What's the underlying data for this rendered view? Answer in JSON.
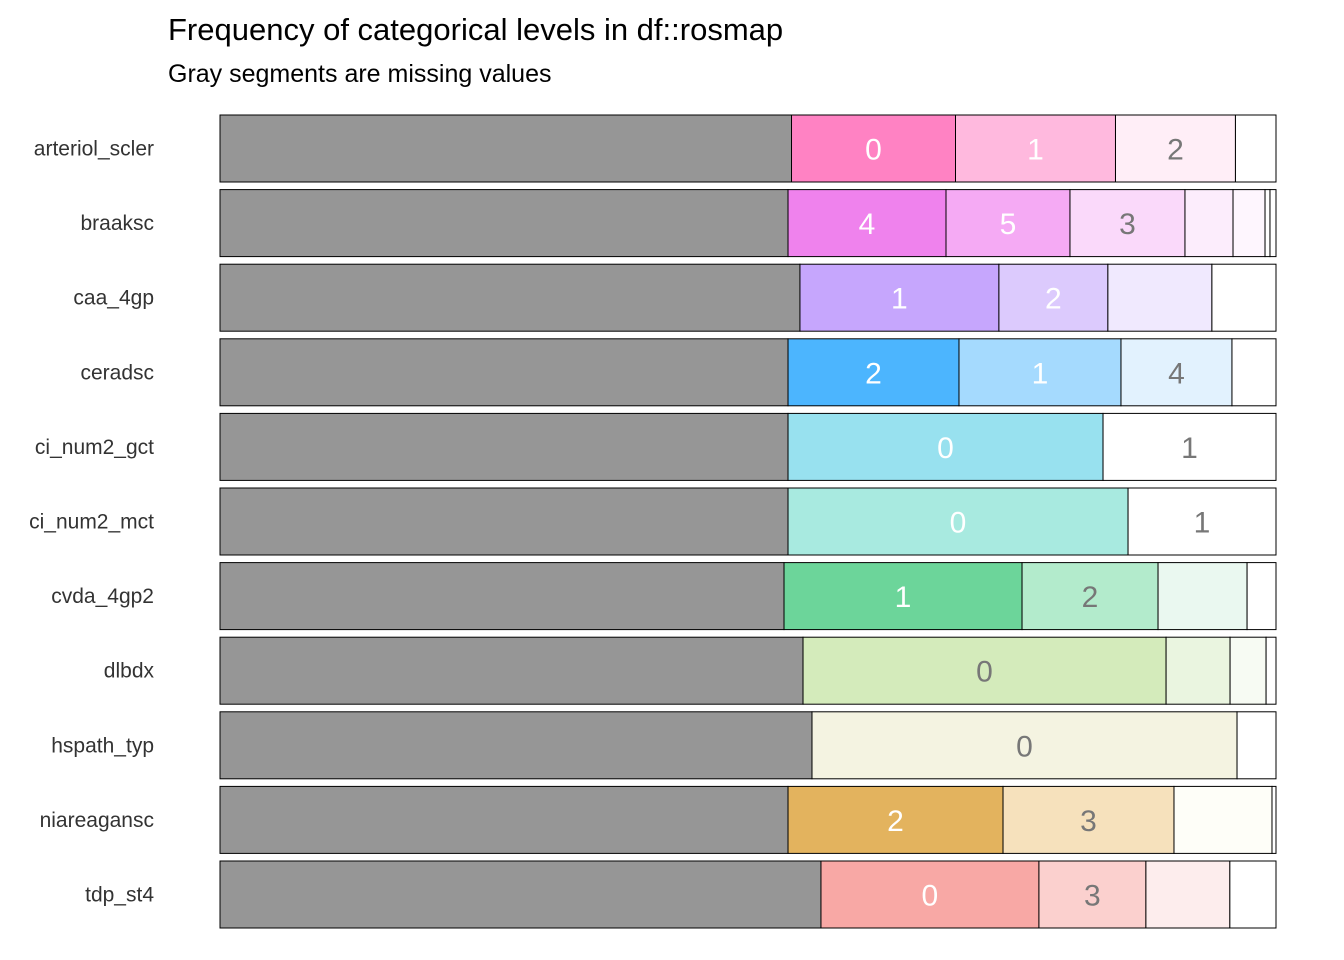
{
  "chart_data": {
    "type": "bar",
    "orientation": "horizontal",
    "stacked": true,
    "normalized": true,
    "title": "Frequency of categorical levels in df::rosmap",
    "subtitle": "Gray segments are missing values",
    "missing_color": "#969696",
    "label_color_dark": "#ffffff",
    "label_color_light": "#777777",
    "rows": [
      {
        "variable": "arteriol_scler",
        "missing": 0.5412,
        "segments": [
          {
            "label": "0",
            "proportion": 0.1553,
            "color": "#ff82c3",
            "dark_text": true
          },
          {
            "label": "1",
            "proportion": 0.1515,
            "color": "#ffb9de",
            "dark_text": true
          },
          {
            "label": "2",
            "proportion": 0.1136,
            "color": "#ffeef7",
            "dark_text": false
          },
          {
            "label": "",
            "proportion": 0.0384,
            "color": "#ffffff",
            "dark_text": false
          }
        ]
      },
      {
        "variable": "braaksc",
        "missing": 0.5379,
        "segments": [
          {
            "label": "4",
            "proportion": 0.1496,
            "color": "#ef82ed",
            "dark_text": true
          },
          {
            "label": "5",
            "proportion": 0.1174,
            "color": "#f5aaf4",
            "dark_text": true
          },
          {
            "label": "3",
            "proportion": 0.1089,
            "color": "#fad9fa",
            "dark_text": false
          },
          {
            "label": "",
            "proportion": 0.0455,
            "color": "#fcedfc",
            "dark_text": false
          },
          {
            "label": "",
            "proportion": 0.0303,
            "color": "#fef6fe",
            "dark_text": false
          },
          {
            "label": "",
            "proportion": 0.0047,
            "color": "#ffffff",
            "dark_text": false
          },
          {
            "label": "",
            "proportion": 0.0057,
            "color": "#ffffff",
            "dark_text": false
          }
        ]
      },
      {
        "variable": "caa_4gp",
        "missing": 0.5492,
        "segments": [
          {
            "label": "1",
            "proportion": 0.1884,
            "color": "#c6a6fd",
            "dark_text": true
          },
          {
            "label": "2",
            "proportion": 0.1032,
            "color": "#dccafd",
            "dark_text": true
          },
          {
            "label": "",
            "proportion": 0.0985,
            "color": "#f0e9fe",
            "dark_text": false
          },
          {
            "label": "",
            "proportion": 0.0607,
            "color": "#ffffff",
            "dark_text": false
          }
        ]
      },
      {
        "variable": "ceradsc",
        "missing": 0.5379,
        "segments": [
          {
            "label": "2",
            "proportion": 0.1619,
            "color": "#4cb5fe",
            "dark_text": true
          },
          {
            "label": "1",
            "proportion": 0.1534,
            "color": "#a5dafe",
            "dark_text": true
          },
          {
            "label": "4",
            "proportion": 0.1051,
            "color": "#e2f2fe",
            "dark_text": false
          },
          {
            "label": "",
            "proportion": 0.0417,
            "color": "#ffffff",
            "dark_text": false
          }
        ]
      },
      {
        "variable": "ci_num2_gct",
        "missing": 0.5379,
        "segments": [
          {
            "label": "0",
            "proportion": 0.2983,
            "color": "#98e1ef",
            "dark_text": true
          },
          {
            "label": "1",
            "proportion": 0.1638,
            "color": "#ffffff",
            "dark_text": false
          }
        ]
      },
      {
        "variable": "ci_num2_mct",
        "missing": 0.5379,
        "segments": [
          {
            "label": "0",
            "proportion": 0.322,
            "color": "#a8eae0",
            "dark_text": true
          },
          {
            "label": "1",
            "proportion": 0.1401,
            "color": "#ffffff",
            "dark_text": false
          }
        ]
      },
      {
        "variable": "cvda_4gp2",
        "missing": 0.5341,
        "segments": [
          {
            "label": "1",
            "proportion": 0.2254,
            "color": "#6cd59a",
            "dark_text": true
          },
          {
            "label": "2",
            "proportion": 0.1288,
            "color": "#b3ebcc",
            "dark_text": false
          },
          {
            "label": "",
            "proportion": 0.0843,
            "color": "#eaf8f0",
            "dark_text": false
          },
          {
            "label": "",
            "proportion": 0.0274,
            "color": "#ffffff",
            "dark_text": false
          }
        ]
      },
      {
        "variable": "dlbdx",
        "missing": 0.5521,
        "segments": [
          {
            "label": "0",
            "proportion": 0.3438,
            "color": "#d4ebbb",
            "dark_text": false
          },
          {
            "label": "",
            "proportion": 0.0606,
            "color": "#eaf5e0",
            "dark_text": false
          },
          {
            "label": "",
            "proportion": 0.0341,
            "color": "#f7fbf3",
            "dark_text": false
          },
          {
            "label": "",
            "proportion": 0.0094,
            "color": "#ffffff",
            "dark_text": false
          }
        ]
      },
      {
        "variable": "hspath_typ",
        "missing": 0.5606,
        "segments": [
          {
            "label": "0",
            "proportion": 0.4025,
            "color": "#f4f3e1",
            "dark_text": false
          },
          {
            "label": "",
            "proportion": 0.0369,
            "color": "#ffffff",
            "dark_text": false
          }
        ]
      },
      {
        "variable": "niareagansc",
        "missing": 0.5379,
        "segments": [
          {
            "label": "2",
            "proportion": 0.2036,
            "color": "#e3b35e",
            "dark_text": true
          },
          {
            "label": "3",
            "proportion": 0.1619,
            "color": "#f6e1bc",
            "dark_text": false
          },
          {
            "label": "",
            "proportion": 0.0928,
            "color": "#fefef8",
            "dark_text": false
          },
          {
            "label": "",
            "proportion": 0.0038,
            "color": "#ffffff",
            "dark_text": false
          }
        ]
      },
      {
        "variable": "tdp_st4",
        "missing": 0.5691,
        "segments": [
          {
            "label": "0",
            "proportion": 0.2064,
            "color": "#f8a8a5",
            "dark_text": true
          },
          {
            "label": "3",
            "proportion": 0.1013,
            "color": "#fbd0ce",
            "dark_text": false
          },
          {
            "label": "",
            "proportion": 0.0795,
            "color": "#fdeded",
            "dark_text": false
          },
          {
            "label": "",
            "proportion": 0.0437,
            "color": "#ffffff",
            "dark_text": false
          }
        ]
      }
    ],
    "xlim": [
      0,
      1
    ],
    "grid": false,
    "legend": "none"
  }
}
